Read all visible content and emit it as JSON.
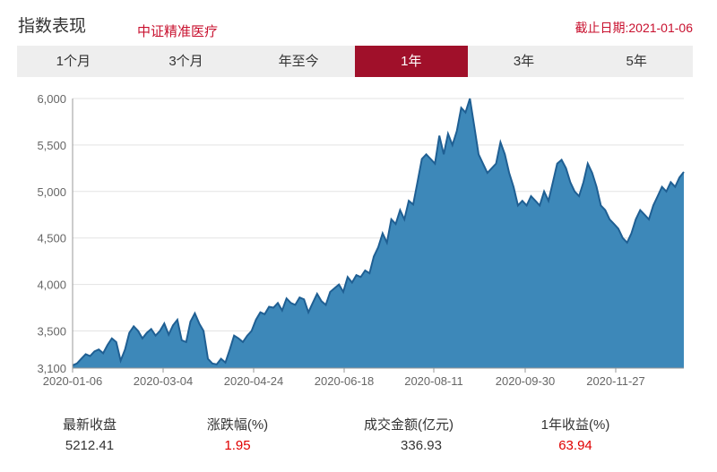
{
  "header": {
    "title": "指数表现",
    "subtitle": "中证精准医疗",
    "date": "截止日期:2021-01-06"
  },
  "tabs": [
    {
      "label": "1个月",
      "active": false
    },
    {
      "label": "3个月",
      "active": false
    },
    {
      "label": "年至今",
      "active": false
    },
    {
      "label": "1年",
      "active": true
    },
    {
      "label": "3年",
      "active": false
    },
    {
      "label": "5年",
      "active": false
    }
  ],
  "colors": {
    "accent": "#a0102a",
    "series_fill": "#3d88b9",
    "series_line": "#1f5f93",
    "up": "#e00000"
  },
  "chart_data": {
    "type": "area",
    "x_tick_labels": [
      "2020-01-06",
      "2020-03-04",
      "2020-04-24",
      "2020-06-18",
      "2020-08-11",
      "2020-09-30",
      "2020-11-27"
    ],
    "y_tick_labels": [
      "3,100",
      "3,500",
      "4,000",
      "4,500",
      "5,000",
      "5,500",
      "6,000"
    ],
    "ylim": [
      3100,
      6000
    ],
    "grid": true,
    "series": [
      {
        "values": [
          3130,
          3150,
          3200,
          3250,
          3230,
          3280,
          3300,
          3260,
          3350,
          3420,
          3380,
          3180,
          3300,
          3480,
          3550,
          3500,
          3420,
          3480,
          3520,
          3450,
          3500,
          3580,
          3460,
          3560,
          3620,
          3400,
          3380,
          3600,
          3690,
          3580,
          3500,
          3200,
          3150,
          3140,
          3200,
          3160,
          3300,
          3450,
          3420,
          3380,
          3450,
          3500,
          3620,
          3700,
          3680,
          3760,
          3750,
          3800,
          3720,
          3850,
          3800,
          3780,
          3860,
          3840,
          3700,
          3800,
          3900,
          3820,
          3780,
          3920,
          3960,
          4000,
          3920,
          4080,
          4020,
          4100,
          4080,
          4150,
          4120,
          4300,
          4400,
          4550,
          4450,
          4700,
          4650,
          4800,
          4700,
          4900,
          4860,
          5100,
          5350,
          5400,
          5350,
          5300,
          5600,
          5400,
          5620,
          5500,
          5650,
          5900,
          5850,
          6000,
          5700,
          5400,
          5300,
          5200,
          5250,
          5300,
          5530,
          5400,
          5200,
          5050,
          4850,
          4900,
          4850,
          4950,
          4900,
          4850,
          5000,
          4900,
          5100,
          5300,
          5340,
          5250,
          5100,
          5000,
          4950,
          5100,
          5300,
          5200,
          5050,
          4850,
          4800,
          4700,
          4650,
          4600,
          4500,
          4450,
          4550,
          4700,
          4800,
          4750,
          4700,
          4850,
          4950,
          5050,
          5000,
          5100,
          5050,
          5150,
          5210
        ]
      }
    ]
  },
  "stats": [
    {
      "label": "最新收盘",
      "value": "5212.41",
      "highlight": false
    },
    {
      "label": "涨跌幅(%)",
      "value": "1.95",
      "highlight": true
    },
    {
      "label": "成交金额(亿元)",
      "value": "336.93",
      "highlight": false
    },
    {
      "label": "1年收益(%)",
      "value": "63.94",
      "highlight": true
    }
  ]
}
